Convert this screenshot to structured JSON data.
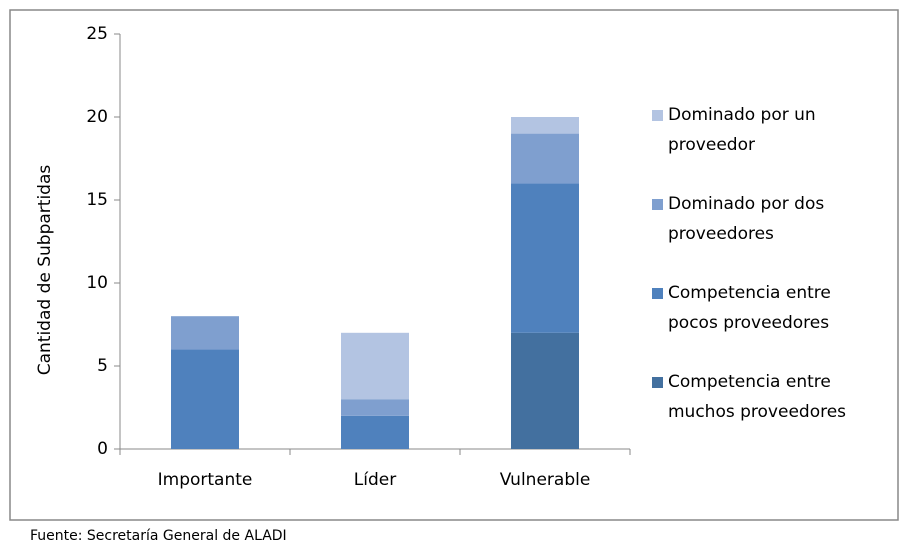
{
  "chart_data": {
    "type": "stacked_bar",
    "y_label": "Cantidad de Subpartidas",
    "source": "Fuente: Secretaría General de ALADI",
    "categories": [
      "Importante",
      "Líder",
      "Vulnerable"
    ],
    "series": [
      {
        "name": "Competencia entre muchos proveedores",
        "color": "#43709f",
        "values": [
          0,
          0,
          7
        ]
      },
      {
        "name": "Competencia entre pocos proveedores",
        "color": "#4f81bd",
        "values": [
          6,
          2,
          9
        ]
      },
      {
        "name": "Dominado por dos proveedores",
        "color": "#7f9fcf",
        "values": [
          2,
          1,
          3
        ]
      },
      {
        "name": "Dominado por un proveedor",
        "color": "#b3c4e2",
        "values": [
          0,
          4,
          1
        ]
      }
    ],
    "ylim": [
      0,
      25
    ],
    "yticks": [
      0,
      5,
      10,
      15,
      20,
      25
    ],
    "legend": "right"
  }
}
